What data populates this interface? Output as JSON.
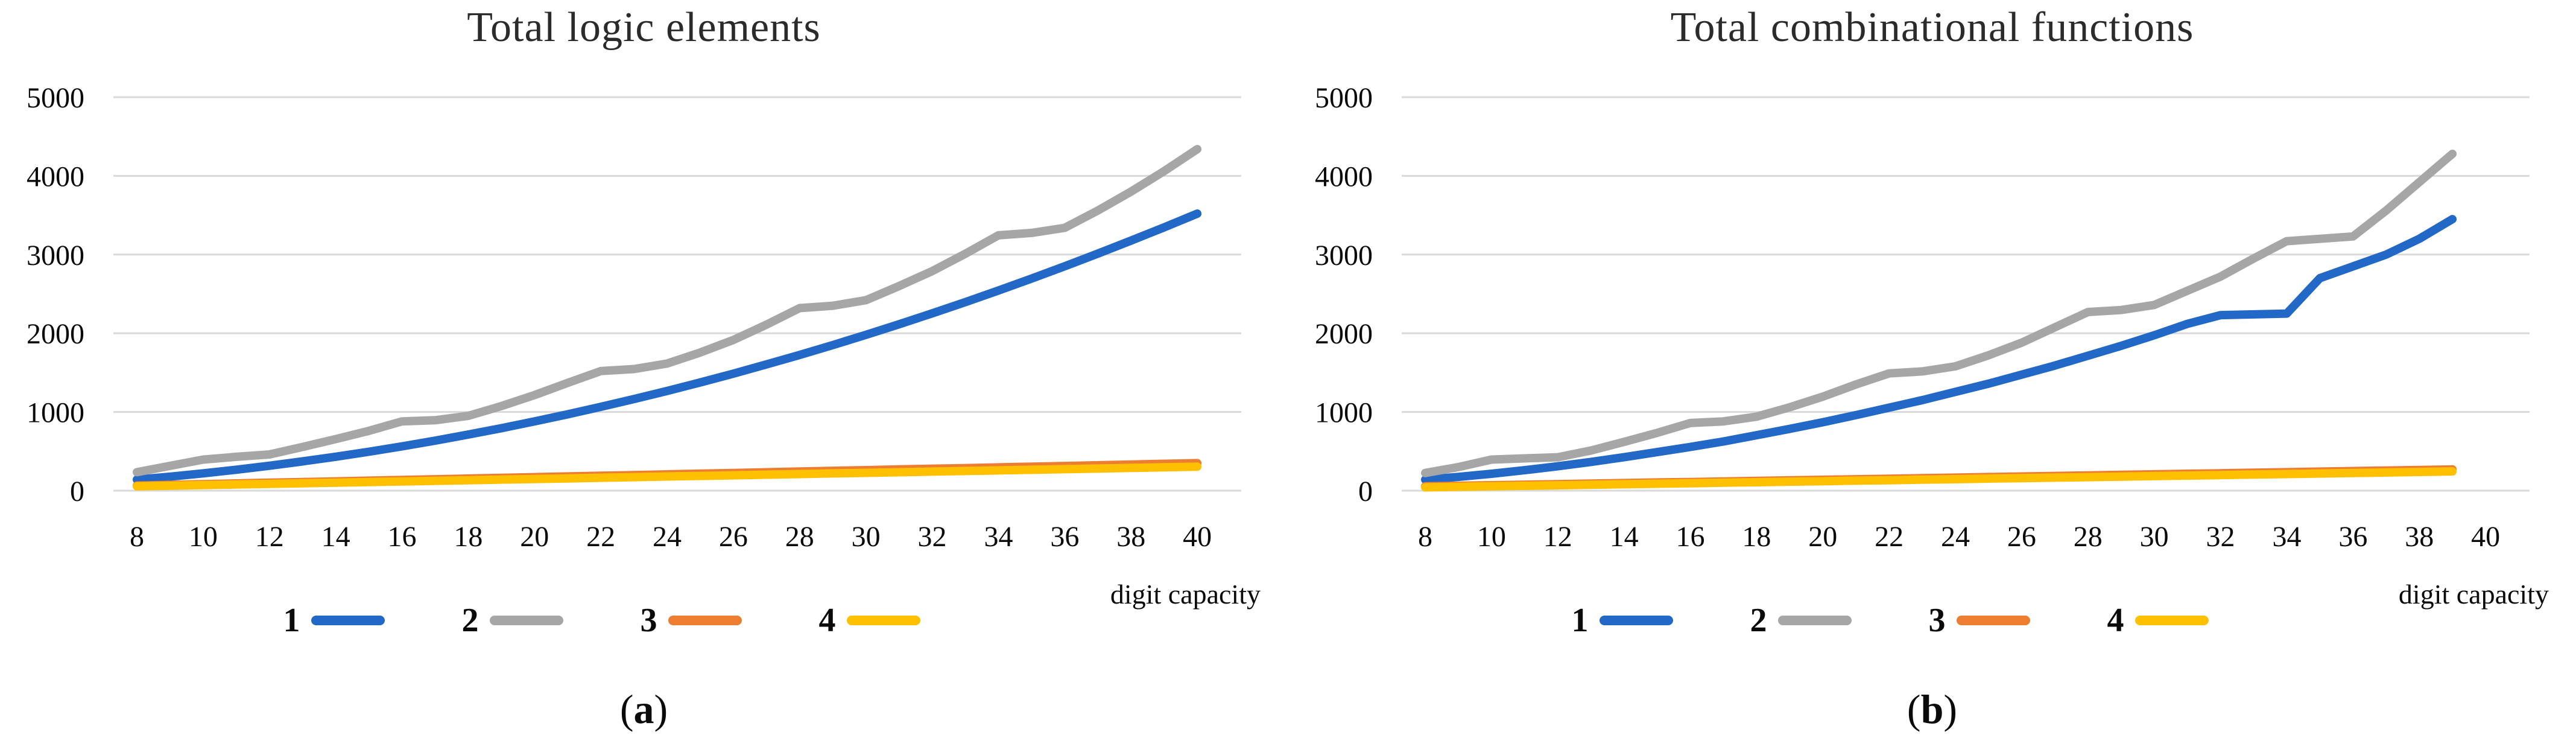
{
  "figure": {
    "background": "#ffffff",
    "grid_color": "#d9d9d9",
    "text_color": "#0a0a0a"
  },
  "chart_data": [
    {
      "type": "line",
      "title": "Total logic elements",
      "xlabel": "digit capacity",
      "ylabel": "",
      "caption_open": "(",
      "caption_letter": "a",
      "caption_close": ")",
      "grid": true,
      "legend_position": "bottom",
      "ylim": [
        0,
        5000
      ],
      "y_ticks": [
        0,
        1000,
        2000,
        3000,
        4000,
        5000
      ],
      "x_ticks": [
        8,
        10,
        12,
        14,
        16,
        18,
        20,
        22,
        24,
        26,
        28,
        30,
        32,
        34,
        36,
        38,
        40
      ],
      "x": [
        8,
        9,
        10,
        11,
        12,
        13,
        14,
        15,
        16,
        17,
        18,
        19,
        20,
        21,
        22,
        23,
        24,
        25,
        26,
        27,
        28,
        29,
        30,
        31,
        32,
        33,
        34,
        35,
        36,
        37,
        38,
        39,
        40
      ],
      "series": [
        {
          "name": "1",
          "color": "#2268c6",
          "values": [
            141,
            178,
            220,
            266,
            317,
            372,
            431,
            495,
            563,
            636,
            713,
            794,
            880,
            970,
            1065,
            1164,
            1267,
            1375,
            1487,
            1604,
            1725,
            1850,
            1980,
            2114,
            2253,
            2396,
            2543,
            2695,
            2851,
            3012,
            3177,
            3346,
            3520
          ]
        },
        {
          "name": "2",
          "color": "#a6a6a6",
          "values": [
            235,
            315,
            395,
            430,
            460,
            555,
            655,
            760,
            880,
            895,
            950,
            1075,
            1215,
            1370,
            1520,
            1545,
            1615,
            1755,
            1915,
            2110,
            2320,
            2350,
            2420,
            2600,
            2790,
            3010,
            3245,
            3275,
            3340,
            3560,
            3800,
            4060,
            4340
          ]
        },
        {
          "name": "3",
          "color": "#ed7d31",
          "values": [
            65,
            74,
            83,
            92,
            101,
            110,
            118,
            127,
            136,
            145,
            154,
            163,
            172,
            181,
            190,
            198,
            207,
            216,
            225,
            234,
            243,
            252,
            261,
            270,
            279,
            287,
            296,
            305,
            314,
            323,
            332,
            341,
            350
          ]
        },
        {
          "name": "4",
          "color": "#ffc000",
          "values": [
            55,
            63,
            71,
            78,
            86,
            94,
            102,
            110,
            117,
            125,
            133,
            141,
            148,
            156,
            164,
            172,
            180,
            187,
            195,
            203,
            211,
            219,
            226,
            234,
            242,
            250,
            258,
            265,
            273,
            281,
            289,
            297,
            305
          ]
        }
      ]
    },
    {
      "type": "line",
      "title": "Total combinational functions",
      "xlabel": "digit capacity",
      "ylabel": "",
      "caption_open": "(",
      "caption_letter": "b",
      "caption_close": ")",
      "grid": true,
      "legend_position": "bottom",
      "ylim": [
        0,
        5000
      ],
      "y_ticks": [
        0,
        1000,
        2000,
        3000,
        4000,
        5000
      ],
      "x_ticks": [
        8,
        10,
        12,
        14,
        16,
        18,
        20,
        22,
        24,
        26,
        28,
        30,
        32,
        34,
        36,
        38,
        40
      ],
      "x": [
        8,
        9,
        10,
        11,
        12,
        13,
        14,
        15,
        16,
        17,
        18,
        19,
        20,
        21,
        22,
        23,
        24,
        25,
        26,
        27,
        28,
        29,
        30,
        31,
        32,
        33,
        34,
        35,
        36,
        37,
        38,
        39
      ],
      "series": [
        {
          "name": "1",
          "color": "#2268c6",
          "values": [
            140,
            175,
            215,
            260,
            310,
            365,
            425,
            490,
            555,
            625,
            705,
            785,
            870,
            960,
            1055,
            1150,
            1255,
            1360,
            1475,
            1590,
            1715,
            1840,
            1975,
            2120,
            2230,
            2240,
            2250,
            2700,
            2850,
            3000,
            3200,
            3450
          ]
        },
        {
          "name": "2",
          "color": "#a6a6a6",
          "values": [
            225,
            300,
            395,
            410,
            425,
            510,
            620,
            735,
            860,
            880,
            940,
            1060,
            1195,
            1350,
            1490,
            1515,
            1580,
            1720,
            1880,
            2075,
            2270,
            2295,
            2360,
            2540,
            2720,
            2950,
            3170,
            3200,
            3230,
            3560,
            3920,
            4280
          ]
        },
        {
          "name": "3",
          "color": "#ed7d31",
          "values": [
            55,
            62,
            69,
            76,
            83,
            90,
            97,
            104,
            110,
            117,
            124,
            131,
            138,
            145,
            152,
            159,
            166,
            173,
            180,
            187,
            194,
            201,
            208,
            215,
            221,
            228,
            235,
            242,
            249,
            256,
            263,
            270
          ]
        },
        {
          "name": "4",
          "color": "#ffc000",
          "values": [
            42,
            49,
            55,
            62,
            68,
            75,
            81,
            88,
            94,
            101,
            107,
            114,
            120,
            127,
            133,
            140,
            146,
            153,
            159,
            166,
            172,
            179,
            185,
            192,
            198,
            205,
            211,
            218,
            224,
            231,
            238,
            245
          ]
        }
      ]
    }
  ]
}
